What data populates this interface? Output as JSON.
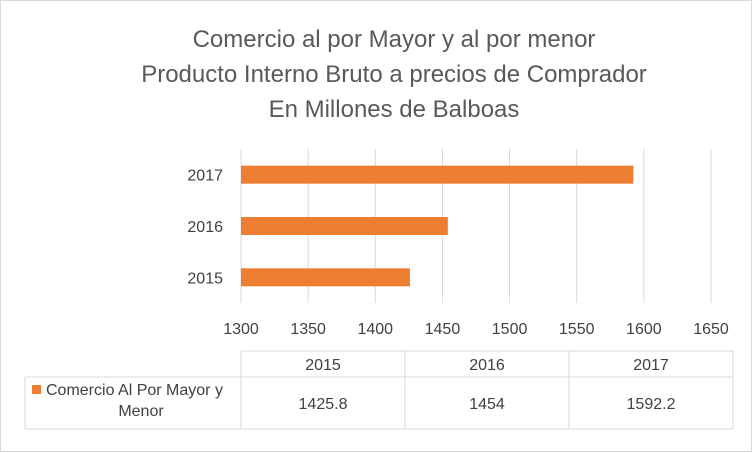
{
  "chart_data": {
    "type": "bar",
    "orientation": "horizontal",
    "title_lines": [
      "Comercio al por Mayor y al por menor",
      "Producto Interno Bruto a precios de Comprador",
      "En Millones de Balboas"
    ],
    "categories": [
      "2015",
      "2016",
      "2017"
    ],
    "series": [
      {
        "name": "Comercio Al Por Mayor y Menor",
        "values": [
          1425.8,
          1454,
          1592.2
        ],
        "color": "#ed7d31"
      }
    ],
    "x_ticks": [
      1300,
      1350,
      1400,
      1450,
      1500,
      1550,
      1600,
      1650
    ],
    "xlim": [
      1300,
      1650
    ],
    "grid": true,
    "data_table": {
      "headers": [
        "2015",
        "2016",
        "2017"
      ],
      "series_label_lines": [
        "Comercio Al Por Mayor y",
        "Menor"
      ],
      "values": [
        "1425.8",
        "1454",
        "1592.2"
      ]
    }
  }
}
